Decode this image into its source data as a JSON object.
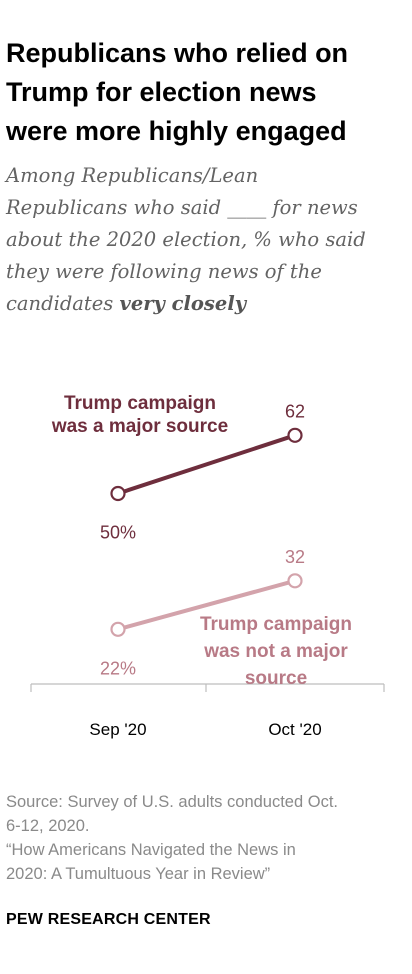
{
  "title_lines": [
    "Republicans who relied on",
    "Trump for election news",
    "were more highly engaged"
  ],
  "subtitle": {
    "lines": [
      "Among Republicans/Lean",
      "Republicans who said ____ for news",
      "about the 2020 election, % who said",
      "they were following news of the"
    ],
    "last_line_prefix": "candidates ",
    "last_line_emphasis": "very closely"
  },
  "chart_data": {
    "type": "line",
    "categories": [
      "Sep '20",
      "Oct '20"
    ],
    "ylim": [
      0,
      100
    ],
    "grid": false,
    "series": [
      {
        "name_lines": [
          "Trump campaign",
          "was a major source"
        ],
        "values": [
          50,
          62
        ],
        "labels": [
          "50%",
          "62"
        ],
        "color": "#6e2e3d"
      },
      {
        "name_lines": [
          "Trump campaign",
          "was not a major",
          "source"
        ],
        "values": [
          22,
          32
        ],
        "labels": [
          "22%",
          "32"
        ],
        "color": "#d3a3ab",
        "label_color": "#b87a86"
      }
    ]
  },
  "source_lines": [
    "Source: Survey of U.S. adults conducted Oct.",
    "6-12, 2020.",
    "“How Americans Navigated the News in",
    "2020: A Tumultuous Year in Review”"
  ],
  "brand": "PEW RESEARCH CENTER"
}
